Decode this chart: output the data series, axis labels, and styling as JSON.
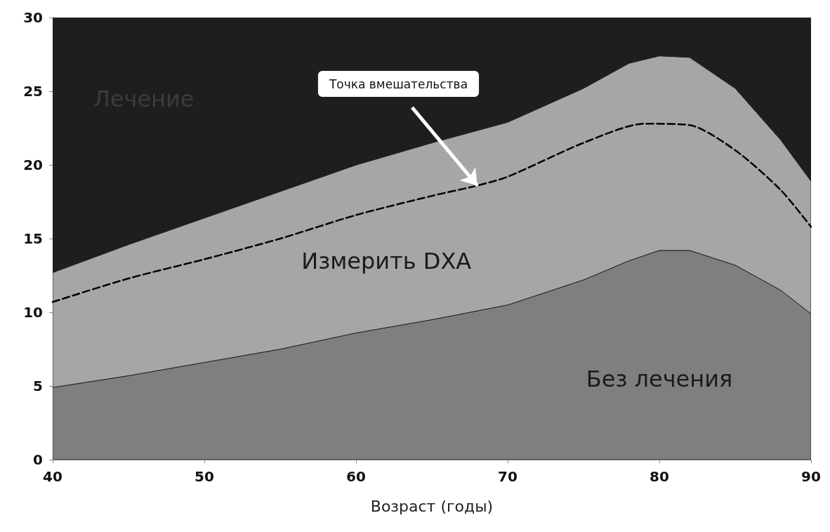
{
  "chart_data": {
    "type": "area",
    "stacked": true,
    "xlabel": "Возраст (годы)",
    "x": [
      40,
      45,
      50,
      55,
      60,
      65,
      70,
      75,
      78,
      80,
      82,
      85,
      88,
      90
    ],
    "series": [
      {
        "name": "Без лечения",
        "color": "#7f7f7f",
        "values": [
          4.9,
          5.7,
          6.6,
          7.5,
          8.6,
          9.5,
          10.5,
          12.2,
          13.5,
          14.2,
          14.2,
          13.2,
          11.5,
          9.9
        ]
      },
      {
        "name": "Измерить DXA",
        "color": "#a6a6a6",
        "values": [
          7.8,
          8.9,
          9.8,
          10.7,
          11.4,
          12.0,
          12.4,
          13.0,
          13.4,
          13.2,
          13.1,
          12.0,
          10.2,
          9.0
        ]
      },
      {
        "name": "Лечение",
        "color": "#1e1e1e",
        "values": [
          17.3,
          15.4,
          13.6,
          11.8,
          10.0,
          8.5,
          7.1,
          4.8,
          3.1,
          2.6,
          2.7,
          4.8,
          8.3,
          11.1
        ]
      },
      {
        "type": "line",
        "color": "#000000",
        "line_style": "dashed",
        "x": [
          40,
          45,
          50,
          55,
          60,
          65,
          68,
          70,
          75,
          79,
          82,
          85,
          88,
          90
        ],
        "values": [
          10.7,
          12.3,
          13.6,
          15.0,
          16.6,
          17.9,
          18.6,
          19.2,
          21.5,
          22.8,
          22.7,
          21.0,
          18.3,
          15.8
        ]
      }
    ],
    "annotations": [
      "Точка вмешательства"
    ],
    "xlim": [
      40,
      90
    ],
    "xticks": [
      40,
      50,
      60,
      70,
      80,
      90
    ],
    "ylim": [
      0,
      30
    ],
    "yticks": [
      0,
      5,
      10,
      15,
      20,
      25,
      30
    ],
    "grid": false,
    "legend": false,
    "marker": "none"
  }
}
